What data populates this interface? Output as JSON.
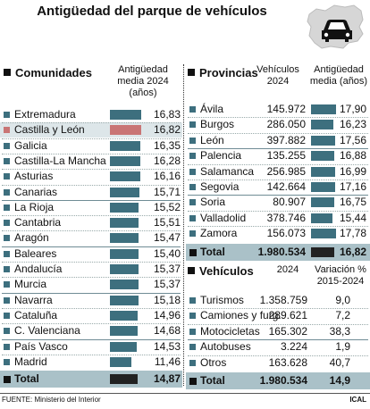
{
  "title": "Antigüedad del parque de vehículos",
  "footer": {
    "source": "FUENTE: Ministerio del Interior",
    "agency": "ICAL"
  },
  "colors": {
    "bar": "#3d6f7e",
    "highlight": "#c97575",
    "total_bg": "#aac1c8",
    "total_bar": "#222222",
    "highlight_bg": "#dde6e9"
  },
  "chart_data": [
    {
      "type": "bar",
      "title": "Comunidades",
      "ylabel": "Antigüedad media 2024 (años)",
      "categories": [
        "Extremadura",
        "Castilla y León",
        "Galicia",
        "Castilla-La Mancha",
        "Asturias",
        "Canarias",
        "La Rioja",
        "Cantabria",
        "Aragón",
        "Baleares",
        "Andalucía",
        "Murcia",
        "Navarra",
        "Cataluña",
        "C. Valenciana",
        "País Vasco",
        "Madrid"
      ],
      "values": [
        "16,83",
        "16,82",
        "16,35",
        "16,28",
        "16,16",
        "15,71",
        "15,52",
        "15,51",
        "15,47",
        "15,40",
        "15,37",
        "15,37",
        "15,18",
        "14,96",
        "14,68",
        "14,53",
        "11,46"
      ],
      "highlight": "Castilla y León",
      "total_label": "Total",
      "total_value": "14,87"
    },
    {
      "type": "table",
      "title": "Provincias",
      "columns": [
        "Vehículos 2024",
        "Antigüedad media (años)"
      ],
      "rows": [
        {
          "name": "Ávila",
          "vehicles": "145.972",
          "age": "17,90"
        },
        {
          "name": "Burgos",
          "vehicles": "286.050",
          "age": "16,23"
        },
        {
          "name": "León",
          "vehicles": "397.882",
          "age": "17,56"
        },
        {
          "name": "Palencia",
          "vehicles": "135.255",
          "age": "16,88"
        },
        {
          "name": "Salamanca",
          "vehicles": "256.985",
          "age": "16,99"
        },
        {
          "name": "Segovia",
          "vehicles": "142.664",
          "age": "17,16"
        },
        {
          "name": "Soria",
          "vehicles": "80.907",
          "age": "16,75"
        },
        {
          "name": "Valladolid",
          "vehicles": "378.746",
          "age": "15,44"
        },
        {
          "name": "Zamora",
          "vehicles": "156.073",
          "age": "17,78"
        }
      ],
      "total": {
        "name": "Total",
        "vehicles": "1.980.534",
        "age": "16,82"
      }
    },
    {
      "type": "table",
      "title": "Vehículos",
      "columns": [
        "2024",
        "Variación % 2015-2024"
      ],
      "rows": [
        {
          "name": "Turismos",
          "count": "1.358.759",
          "var": "9,0"
        },
        {
          "name": "Camiones y furg.",
          "count": "289.621",
          "var": "7,2"
        },
        {
          "name": "Motocicletas",
          "count": "165.302",
          "var": "38,3"
        },
        {
          "name": "Autobuses",
          "count": "3.224",
          "var": "1,9"
        },
        {
          "name": "Otros",
          "count": "163.628",
          "var": "40,7"
        }
      ],
      "total": {
        "name": "Total",
        "count": "1.980.534",
        "var": "14,9"
      }
    }
  ],
  "headers": {
    "comunidades_col": [
      "Antigüedad",
      "media 2024",
      "(años)"
    ],
    "provincias_col1": [
      "Vehículos",
      "2024"
    ],
    "provincias_col2": [
      "Antigüedad",
      "media (años)"
    ],
    "vehiculos_col1": "2024",
    "vehiculos_col2": [
      "Variación %",
      "2015-2024"
    ]
  }
}
